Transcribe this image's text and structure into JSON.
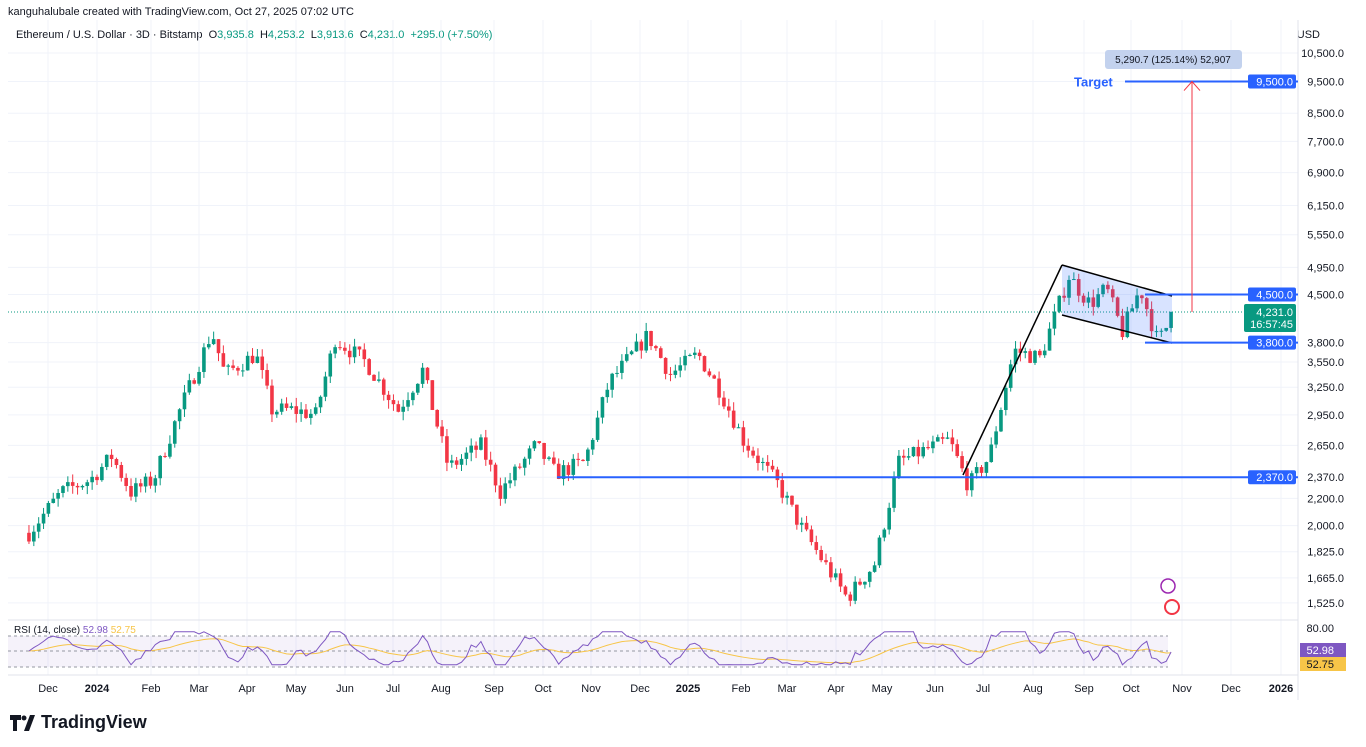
{
  "header": {
    "credit": "kanguhalubale created with TradingView.com, Oct 27, 2025 07:02 UTC",
    "symbol": "Ethereum / U.S. Dollar · 3D · Bitstamp",
    "open_label": "O",
    "open": "3,935.8",
    "high_label": "H",
    "high": "4,253.2",
    "low_label": "L",
    "low": "3,913.6",
    "close_label": "C",
    "close": "4,231.0",
    "change": "+295.0 (+7.50%)",
    "currency": "USD"
  },
  "chart_data": {
    "type": "candlestick",
    "scale": "log",
    "y_ticks": [
      "10,500.0",
      "9,500.0",
      "8,500.0",
      "7,700.0",
      "6,900.0",
      "6,150.0",
      "5,550.0",
      "4,950.0",
      "4,500.0",
      "3,800.0",
      "3,550.0",
      "3,250.0",
      "2,950.0",
      "2,650.0",
      "2,370.0",
      "2,200.0",
      "2,000.0",
      "1,825.0",
      "1,665.0",
      "1,525.0"
    ],
    "x_ticks": [
      "Dec",
      "2024",
      "Feb",
      "Mar",
      "Apr",
      "May",
      "Jun",
      "Jul",
      "Aug",
      "Sep",
      "Oct",
      "Nov",
      "Dec",
      "2025",
      "Feb",
      "Mar",
      "Apr",
      "May",
      "Jun",
      "Jul",
      "Aug",
      "Sep",
      "Oct",
      "Nov",
      "Dec",
      "2026"
    ],
    "price_path": [
      [
        "2023-11-20",
        1950
      ],
      [
        "2023-12-10",
        2250
      ],
      [
        "2023-12-28",
        2350
      ],
      [
        "2024-01-10",
        2550
      ],
      [
        "2024-01-22",
        2250
      ],
      [
        "2024-02-05",
        2350
      ],
      [
        "2024-02-20",
        2950
      ],
      [
        "2024-03-12",
        3950
      ],
      [
        "2024-03-20",
        3400
      ],
      [
        "2024-04-08",
        3650
      ],
      [
        "2024-04-18",
        3000
      ],
      [
        "2024-05-01",
        3000
      ],
      [
        "2024-05-15",
        2950
      ],
      [
        "2024-05-27",
        3850
      ],
      [
        "2024-06-15",
        3550
      ],
      [
        "2024-07-05",
        3000
      ],
      [
        "2024-07-20",
        3450
      ],
      [
        "2024-08-05",
        2450
      ],
      [
        "2024-08-25",
        2650
      ],
      [
        "2024-09-06",
        2250
      ],
      [
        "2024-09-28",
        2650
      ],
      [
        "2024-10-10",
        2400
      ],
      [
        "2024-10-28",
        2500
      ],
      [
        "2024-11-12",
        3300
      ],
      [
        "2024-12-06",
        3900
      ],
      [
        "2024-12-20",
        3400
      ],
      [
        "2025-01-06",
        3650
      ],
      [
        "2025-01-20",
        3200
      ],
      [
        "2025-02-03",
        2700
      ],
      [
        "2025-02-25",
        2300
      ],
      [
        "2025-03-10",
        2000
      ],
      [
        "2025-04-08",
        1550
      ],
      [
        "2025-04-25",
        1750
      ],
      [
        "2025-05-10",
        2500
      ],
      [
        "2025-05-25",
        2600
      ],
      [
        "2025-06-10",
        2700
      ],
      [
        "2025-06-22",
        2300
      ],
      [
        "2025-07-05",
        2550
      ],
      [
        "2025-07-20",
        3700
      ],
      [
        "2025-08-05",
        3600
      ],
      [
        "2025-08-23",
        4800
      ],
      [
        "2025-09-05",
        4350
      ],
      [
        "2025-09-15",
        4600
      ],
      [
        "2025-09-25",
        3950
      ],
      [
        "2025-10-06",
        4600
      ],
      [
        "2025-10-17",
        3800
      ],
      [
        "2025-10-27",
        4231
      ]
    ],
    "levels": {
      "support": 2370,
      "flag_top": 4500,
      "flag_bottom": 3800,
      "target": 9500,
      "last": 4231
    },
    "level_labels": {
      "support": "2,370.0",
      "flag_top": "4,500.0",
      "flag_bottom": "3,800.0",
      "target": "9,500.0",
      "last": "4,231.0",
      "countdown": "16:57:45"
    },
    "target_label": "Target",
    "measure_label": "5,290.7 (125.14%) 52,907",
    "colors": {
      "up": "#089981",
      "down": "#f23645",
      "level": "#2962ff",
      "rsi": "#7e57c2",
      "rsi_ma": "#f7c548",
      "arrow": "#f23645"
    },
    "rsi": {
      "label": "RSI (14, close)",
      "value": "52.98",
      "ma": "52.75",
      "tick": "80.00"
    }
  },
  "footer": {
    "logo": "TradingView"
  }
}
